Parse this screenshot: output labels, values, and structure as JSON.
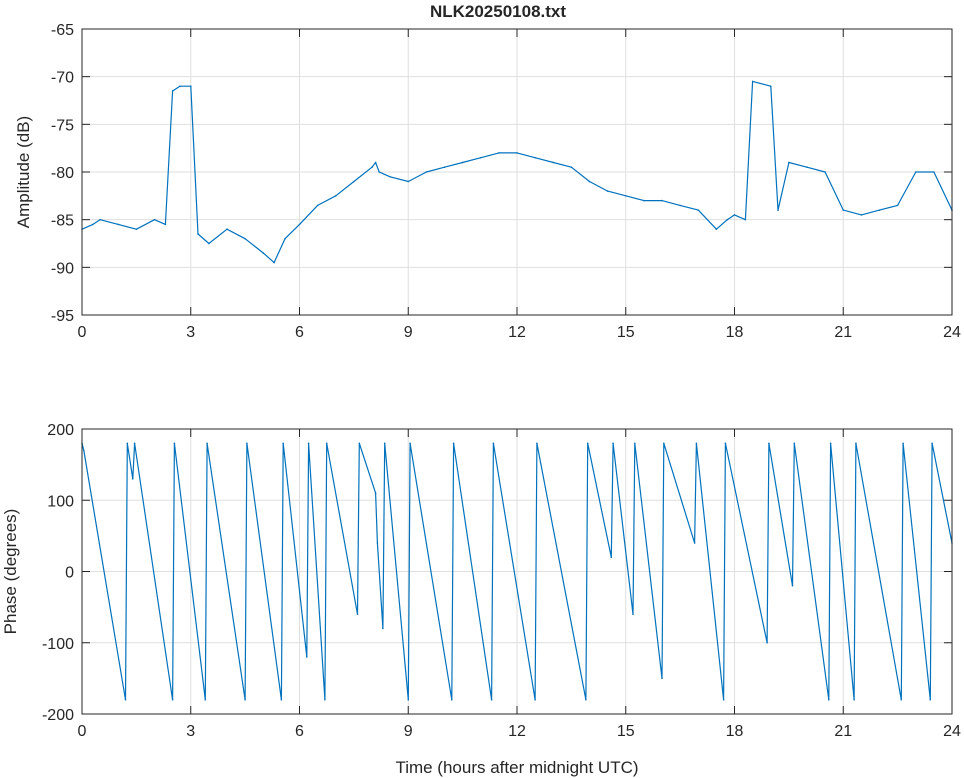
{
  "figure": {
    "title": "NLK20250108.txt",
    "line_color": "#0072BD"
  },
  "chart_data": [
    {
      "type": "line",
      "title": "NLK20250108.txt",
      "xlabel": "",
      "ylabel": "Amplitude (dB)",
      "xlim": [
        0,
        24
      ],
      "ylim": [
        -95,
        -65
      ],
      "xticks": [
        0,
        3,
        6,
        9,
        12,
        15,
        18,
        21,
        24
      ],
      "yticks": [
        -95,
        -90,
        -85,
        -80,
        -75,
        -70,
        -65
      ],
      "xtick_labels": [
        "0",
        "3",
        "6",
        "9",
        "12",
        "15",
        "18",
        "21",
        "24"
      ],
      "ytick_labels": [
        "-95",
        "-90",
        "-85",
        "-80",
        "-75",
        "-70",
        "-65"
      ],
      "grid": true,
      "series": [
        {
          "color": "#0072BD",
          "x": [
            0,
            0.3,
            0.5,
            1,
            1.5,
            2,
            2.3,
            2.5,
            2.7,
            3.0,
            3.2,
            3.5,
            4.0,
            4.5,
            5.0,
            5.3,
            5.6,
            6.0,
            6.5,
            7.0,
            7.5,
            8.0,
            8.1,
            8.2,
            8.5,
            9.0,
            9.5,
            10.0,
            10.5,
            11.0,
            11.5,
            12.0,
            12.5,
            13.0,
            13.5,
            14.0,
            14.5,
            15.0,
            15.5,
            16.0,
            16.5,
            17.0,
            17.5,
            17.8,
            18.0,
            18.3,
            18.5,
            19.0,
            19.2,
            19.5,
            20.0,
            20.5,
            21.0,
            21.5,
            22.0,
            22.5,
            23.0,
            23.5,
            24.0
          ],
          "y": [
            -86,
            -85.5,
            -85,
            -85.5,
            -86,
            -85,
            -85.5,
            -71.5,
            -71,
            -71,
            -86.5,
            -87.5,
            -86,
            -87,
            -88.5,
            -89.5,
            -87,
            -85.5,
            -83.5,
            -82.5,
            -81,
            -79.5,
            -79,
            -80,
            -80.5,
            -81,
            -80,
            -79.5,
            -79,
            -78.5,
            -78,
            -78,
            -78.5,
            -79,
            -79.5,
            -81,
            -82,
            -82.5,
            -83,
            -83,
            -83.5,
            -84,
            -86,
            -85,
            -84.5,
            -85,
            -70.5,
            -71,
            -84,
            -79,
            -79.5,
            -80,
            -84,
            -84.5,
            -84,
            -83.5,
            -80,
            -80,
            -84
          ]
        }
      ]
    },
    {
      "type": "line",
      "title": "",
      "xlabel": "Time (hours after midnight UTC)",
      "ylabel": "Phase (degrees)",
      "xlim": [
        0,
        24
      ],
      "ylim": [
        -200,
        200
      ],
      "xticks": [
        0,
        3,
        6,
        9,
        12,
        15,
        18,
        21,
        24
      ],
      "yticks": [
        -200,
        -100,
        0,
        100,
        200
      ],
      "xtick_labels": [
        "0",
        "3",
        "6",
        "9",
        "12",
        "15",
        "18",
        "21",
        "24"
      ],
      "ytick_labels": [
        "-200",
        "-100",
        "0",
        "100",
        "200"
      ],
      "grid": true,
      "series": [
        {
          "color": "#0072BD",
          "x": [
            0,
            0.05,
            1.2,
            1.25,
            1.4,
            1.45,
            2.5,
            2.55,
            3.4,
            3.45,
            4.5,
            4.55,
            5.5,
            5.55,
            6.2,
            6.25,
            6.7,
            6.75,
            7.6,
            7.65,
            8.1,
            8.15,
            8.3,
            8.35,
            9.0,
            9.05,
            10.2,
            10.25,
            11.3,
            11.35,
            12.5,
            12.55,
            13.9,
            13.95,
            14.6,
            14.65,
            15.2,
            15.25,
            16.0,
            16.05,
            16.9,
            16.95,
            17.7,
            17.75,
            18.9,
            18.95,
            19.6,
            19.65,
            20.6,
            20.65,
            21.3,
            21.35,
            22.6,
            22.65,
            23.4,
            23.45,
            24.0
          ],
          "y": [
            180,
            170,
            -180,
            180,
            130,
            180,
            -180,
            180,
            -180,
            180,
            -180,
            180,
            -180,
            180,
            -120,
            180,
            -180,
            180,
            -60,
            180,
            110,
            40,
            -80,
            180,
            -180,
            180,
            -180,
            180,
            -180,
            180,
            -180,
            180,
            -180,
            180,
            20,
            180,
            -60,
            180,
            -150,
            180,
            40,
            180,
            -180,
            180,
            -100,
            180,
            -20,
            180,
            -180,
            180,
            -180,
            180,
            -180,
            180,
            -180,
            180,
            40
          ]
        }
      ]
    }
  ]
}
